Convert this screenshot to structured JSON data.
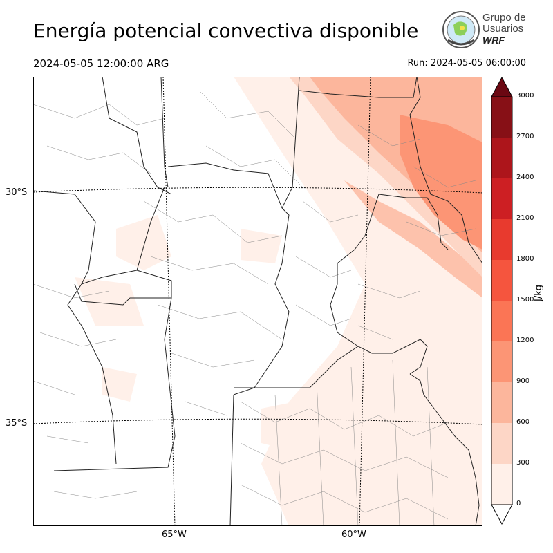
{
  "title": "Energía potencial convectiva disponible",
  "valid_time": "2024-05-05 12:00:00 ARG",
  "run_time": "Run: 2024-05-05 06:00:00",
  "logo": {
    "line1": "Grupo de",
    "line2": "Usuarios",
    "line3": "WRF"
  },
  "lat_labels": [
    "30°S",
    "35°S"
  ],
  "lon_labels": [
    "65°W",
    "60°W"
  ],
  "colorbar": {
    "unit": "J/kg",
    "ticks": [
      "0",
      "300",
      "600",
      "900",
      "1200",
      "1500",
      "1800",
      "2100",
      "2400",
      "2700",
      "3000"
    ],
    "colors": [
      "#fff0e9",
      "#fdd6c6",
      "#fcb69c",
      "#fc9575",
      "#fb7555",
      "#f5553e",
      "#e83a2e",
      "#cd1f23",
      "#ad151b",
      "#871016",
      "#6b0812"
    ]
  },
  "legend_levels_units": "J/kg"
}
